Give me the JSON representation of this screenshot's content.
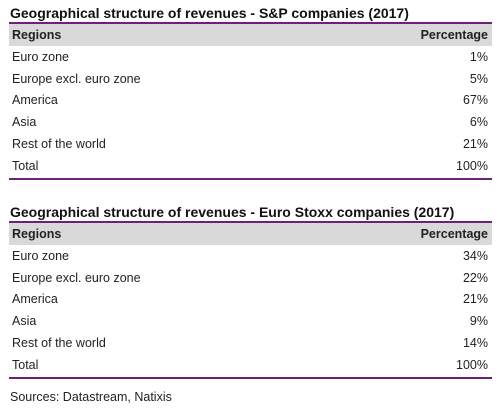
{
  "tables": [
    {
      "title": "Geographical structure of revenues - S&P companies (2017)",
      "header": {
        "region": "Regions",
        "percentage": "Percentage"
      },
      "rows": [
        {
          "region": "Euro zone",
          "percentage": "1%"
        },
        {
          "region": "Europe excl. euro zone",
          "percentage": "5%"
        },
        {
          "region": "America",
          "percentage": "67%"
        },
        {
          "region": "Asia",
          "percentage": "6%"
        },
        {
          "region": "Rest of the world",
          "percentage": "21%"
        },
        {
          "region": "Total",
          "percentage": "100%"
        }
      ]
    },
    {
      "title": "Geographical structure of revenues - Euro Stoxx companies (2017)",
      "header": {
        "region": "Regions",
        "percentage": "Percentage"
      },
      "rows": [
        {
          "region": "Euro zone",
          "percentage": "34%"
        },
        {
          "region": "Europe excl. euro zone",
          "percentage": "22%"
        },
        {
          "region": "America",
          "percentage": "21%"
        },
        {
          "region": "Asia",
          "percentage": "9%"
        },
        {
          "region": "Rest of the world",
          "percentage": "14%"
        },
        {
          "region": "Total",
          "percentage": "100%"
        }
      ]
    }
  ],
  "source": "Sources: Datastream, Natixis",
  "colors": {
    "accent_rule": "#6d2077",
    "header_bg": "#d9d9d9"
  }
}
